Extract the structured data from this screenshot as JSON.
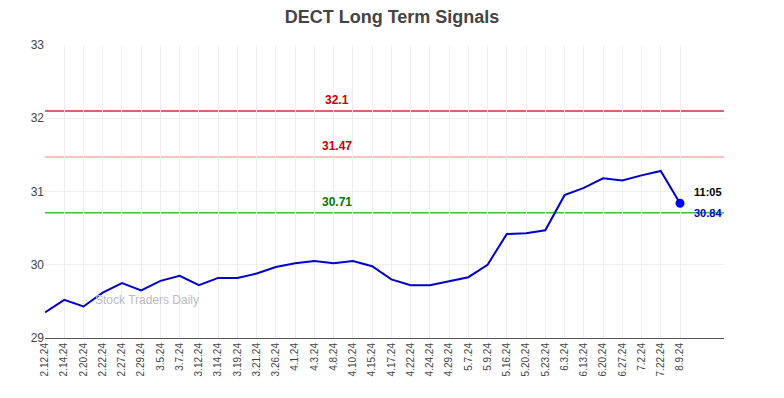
{
  "chart_data": {
    "type": "line",
    "title": "DECT Long Term Signals",
    "categories": [
      "2.12.24",
      "2.14.24",
      "2.20.24",
      "2.22.24",
      "2.27.24",
      "2.29.24",
      "3.5.24",
      "3.7.24",
      "3.12.24",
      "3.14.24",
      "3.19.24",
      "3.21.24",
      "3.26.24",
      "4.1.24",
      "4.3.24",
      "4.8.24",
      "4.10.24",
      "4.15.24",
      "4.17.24",
      "4.22.24",
      "4.24.24",
      "4.29.24",
      "5.7.24",
      "5.9.24",
      "5.16.24",
      "5.20.24",
      "5.23.24",
      "6.3.24",
      "6.13.24",
      "6.20.24",
      "6.27.24",
      "7.2.24",
      "7.22.24",
      "8.9.24"
    ],
    "values": [
      29.35,
      29.52,
      29.43,
      29.62,
      29.75,
      29.65,
      29.78,
      29.85,
      29.72,
      29.82,
      29.82,
      29.88,
      29.97,
      30.02,
      30.05,
      30.02,
      30.05,
      29.98,
      29.8,
      29.72,
      29.72,
      29.77,
      29.83,
      30.0,
      30.42,
      30.43,
      30.47,
      30.95,
      31.05,
      31.18,
      31.15,
      31.22,
      31.28,
      30.84
    ],
    "color": "#0000cc",
    "ylim": [
      29.0,
      33.0
    ],
    "yticks": [
      29,
      30,
      31,
      32,
      33
    ],
    "grid": true,
    "hlines": [
      {
        "y": 32.1,
        "label": "32.1",
        "color": "#cc3333",
        "label_color": "#cc0000"
      },
      {
        "y": 31.47,
        "label": "31.47",
        "color": "#ffaaaa",
        "label_color": "#cc0000"
      },
      {
        "y": 30.71,
        "label": "30.71",
        "color": "#44bb44",
        "label_color": "#007700"
      }
    ],
    "last_point": {
      "color": "#0000ff",
      "time_label": "11:05",
      "value_label": "30.84"
    },
    "watermark": "Stock Traders Daily"
  }
}
